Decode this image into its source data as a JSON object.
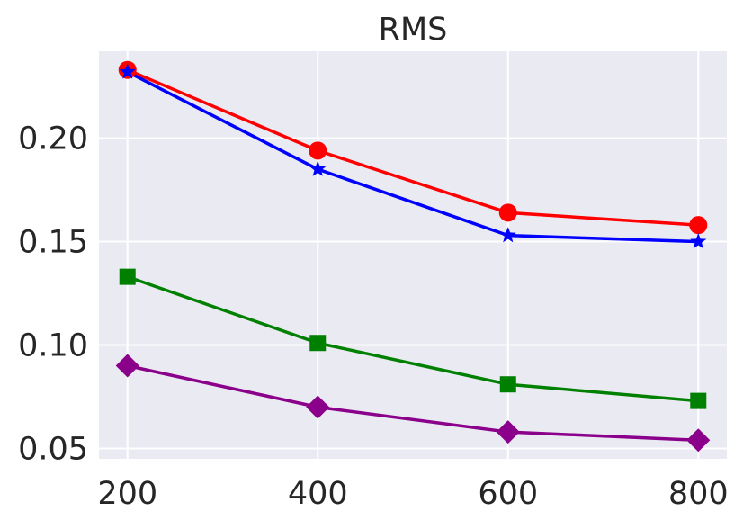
{
  "chart_data": {
    "type": "line",
    "title": "RMS",
    "xlabel": "",
    "ylabel": "",
    "x": [
      200,
      400,
      600,
      800
    ],
    "xlim": [
      170,
      830
    ],
    "ylim": [
      0.045,
      0.242
    ],
    "xticks": [
      "200",
      "400",
      "600",
      "800"
    ],
    "yticks": [
      "0.05",
      "0.10",
      "0.15",
      "0.20"
    ],
    "grid": true,
    "series": [
      {
        "color": "#ff0000",
        "marker": "circle",
        "values": [
          0.233,
          0.194,
          0.164,
          0.158
        ]
      },
      {
        "color": "#0000ff",
        "marker": "star",
        "values": [
          0.232,
          0.185,
          0.153,
          0.15
        ]
      },
      {
        "color": "#008000",
        "marker": "square",
        "values": [
          0.133,
          0.101,
          0.081,
          0.073
        ]
      },
      {
        "color": "#8b008b",
        "marker": "diamond",
        "values": [
          0.09,
          0.07,
          0.058,
          0.054
        ]
      }
    ],
    "colors": {
      "background": "#eaeaf2",
      "grid": "#ffffff",
      "text": "#262626"
    }
  }
}
